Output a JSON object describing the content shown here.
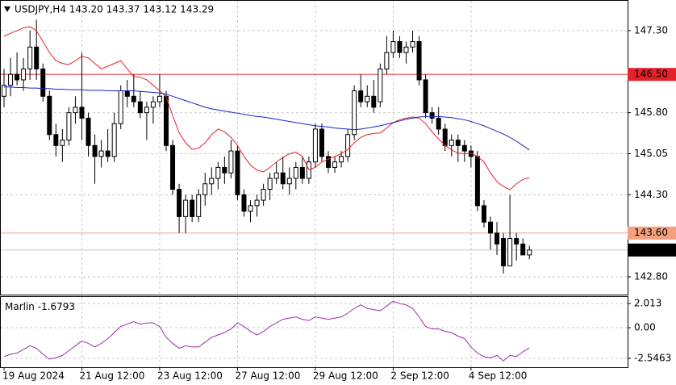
{
  "header": "USDJPY,H4  143.20 143.37 143.12 143.29",
  "chart_data": [
    {
      "type": "candlestick",
      "categories": [
        "19 Aug 2024",
        null,
        null,
        null,
        null,
        null,
        null,
        null,
        null,
        null,
        null,
        null,
        "21 Aug 12:00",
        null,
        null,
        null,
        null,
        null,
        null,
        null,
        null,
        null,
        null,
        null,
        "23 Aug 12:00",
        null,
        null,
        null,
        null,
        null,
        null,
        null,
        null,
        null,
        null,
        null,
        "27 Aug 12:00",
        null,
        null,
        null,
        null,
        null,
        null,
        null,
        null,
        null,
        null,
        null,
        "29 Aug 12:00",
        null,
        null,
        null,
        null,
        null,
        null,
        null,
        null,
        null,
        null,
        null,
        "2 Sep 12:00",
        null,
        null,
        null,
        null,
        null,
        null,
        null,
        null,
        null,
        null,
        null,
        "4 Sep 12:00",
        null,
        null,
        null,
        null,
        null,
        null,
        null,
        null,
        null
      ],
      "open": [
        146.1,
        146.3,
        146.5,
        146.4,
        146.6,
        147.0,
        146.6,
        146.1,
        145.4,
        145.2,
        145.3,
        145.8,
        145.9,
        145.7,
        145.2,
        145.0,
        145.1,
        145.0,
        145.6,
        146.2,
        146.1,
        146.0,
        145.8,
        145.9,
        146.0,
        146.1,
        145.2,
        144.4,
        143.9,
        144.2,
        143.9,
        144.3,
        144.5,
        144.6,
        144.8,
        144.7,
        145.1,
        144.3,
        144.0,
        144.1,
        144.2,
        144.4,
        144.6,
        144.7,
        144.5,
        144.6,
        144.8,
        144.6,
        144.9,
        145.5,
        145.0,
        144.8,
        144.9,
        145.0,
        145.4,
        146.2,
        146.0,
        146.1,
        146.0,
        146.6,
        146.9,
        147.1,
        146.9,
        147.0,
        147.1,
        146.4,
        145.8,
        145.7,
        145.5,
        145.2,
        145.3,
        145.2,
        145.1,
        145.0,
        144.1,
        143.8,
        143.6,
        143.5,
        143.0,
        143.5,
        143.4,
        143.2
      ],
      "high": [
        146.6,
        146.8,
        146.9,
        146.8,
        147.3,
        147.5,
        146.7,
        146.2,
        145.6,
        145.5,
        145.9,
        146.1,
        146.9,
        145.8,
        145.4,
        145.3,
        145.5,
        145.8,
        146.3,
        146.4,
        146.5,
        146.2,
        146.0,
        146.1,
        146.5,
        146.2,
        145.3,
        144.5,
        144.3,
        144.3,
        144.4,
        144.7,
        144.8,
        144.9,
        145.0,
        145.3,
        145.2,
        144.4,
        144.2,
        144.3,
        144.5,
        144.7,
        144.9,
        145.0,
        144.8,
        144.9,
        145.0,
        145.0,
        145.6,
        145.6,
        145.1,
        145.0,
        145.1,
        145.5,
        146.3,
        146.5,
        146.3,
        146.4,
        146.7,
        147.2,
        147.3,
        147.2,
        147.1,
        147.3,
        147.2,
        146.5,
        145.9,
        145.9,
        145.6,
        145.4,
        145.4,
        145.3,
        145.2,
        145.1,
        144.2,
        143.9,
        143.8,
        143.6,
        144.3,
        143.6,
        143.5,
        143.37
      ],
      "low": [
        145.9,
        146.1,
        146.3,
        146.2,
        146.4,
        146.4,
        146.0,
        145.3,
        145.0,
        144.9,
        145.2,
        145.6,
        145.3,
        145.0,
        144.5,
        144.8,
        144.9,
        144.9,
        145.5,
        145.9,
        145.9,
        145.7,
        145.3,
        145.6,
        145.9,
        145.1,
        144.3,
        143.6,
        143.6,
        143.8,
        143.8,
        144.1,
        144.3,
        144.4,
        144.5,
        144.6,
        144.2,
        143.9,
        143.8,
        143.9,
        144.1,
        144.2,
        144.5,
        144.4,
        144.3,
        144.4,
        144.5,
        144.5,
        144.8,
        144.9,
        144.7,
        144.7,
        144.8,
        144.9,
        145.3,
        145.9,
        145.9,
        145.8,
        145.9,
        146.5,
        146.8,
        146.8,
        146.7,
        146.9,
        146.3,
        145.7,
        145.6,
        145.4,
        145.1,
        145.0,
        144.9,
        144.9,
        144.8,
        144.0,
        143.7,
        143.3,
        143.2,
        142.86,
        143.0,
        143.1,
        143.2,
        143.12
      ],
      "close": [
        146.3,
        146.5,
        146.4,
        146.6,
        147.0,
        146.6,
        146.1,
        145.4,
        145.2,
        145.3,
        145.8,
        145.9,
        145.7,
        145.2,
        145.0,
        145.1,
        145.0,
        145.6,
        146.2,
        146.1,
        146.0,
        145.8,
        145.9,
        146.0,
        146.1,
        145.2,
        144.4,
        143.9,
        144.2,
        143.9,
        144.3,
        144.5,
        144.6,
        144.8,
        144.7,
        145.1,
        144.3,
        144.0,
        144.1,
        144.2,
        144.4,
        144.6,
        144.7,
        144.5,
        144.6,
        144.8,
        144.6,
        144.9,
        145.5,
        145.0,
        144.8,
        144.9,
        145.0,
        145.4,
        146.2,
        146.0,
        146.1,
        145.9,
        146.6,
        146.9,
        147.1,
        146.9,
        147.0,
        147.1,
        146.4,
        145.8,
        145.7,
        145.5,
        145.2,
        145.3,
        145.2,
        145.1,
        145.0,
        144.1,
        143.8,
        143.6,
        143.4,
        143.0,
        143.5,
        143.4,
        143.2,
        143.29
      ],
      "lines": [
        {
          "color": "#e8202a",
          "values": [
            147.2,
            147.25,
            147.3,
            147.35,
            147.37,
            147.3,
            147.1,
            146.9,
            146.75,
            146.7,
            146.68,
            146.75,
            146.83,
            146.8,
            146.7,
            146.6,
            146.65,
            146.7,
            146.75,
            146.6,
            146.46,
            146.45,
            146.4,
            146.3,
            146.2,
            146.09,
            145.75,
            145.43,
            145.25,
            145.13,
            145.15,
            145.25,
            145.4,
            145.5,
            145.45,
            145.35,
            145.2,
            145.0,
            144.84,
            144.75,
            144.72,
            144.8,
            144.9,
            144.98,
            145.05,
            145.08,
            145.0,
            144.76,
            144.8,
            144.9,
            144.95,
            145.0,
            145.05,
            145.13,
            145.25,
            145.35,
            145.4,
            145.42,
            145.43,
            145.52,
            145.62,
            145.67,
            145.7,
            145.72,
            145.7,
            145.6,
            145.45,
            145.32,
            145.2,
            145.12,
            145.06,
            145.05,
            145.06,
            145.0,
            144.9,
            144.7,
            144.54,
            144.45,
            144.39,
            144.5,
            144.58,
            144.61
          ]
        },
        {
          "color": "#1a22c8",
          "values": [
            146.27,
            146.27,
            146.26,
            146.26,
            146.25,
            146.25,
            146.24,
            146.24,
            146.23,
            146.23,
            146.22,
            146.22,
            146.22,
            146.21,
            146.21,
            146.21,
            146.2,
            146.2,
            146.2,
            146.2,
            146.2,
            146.19,
            146.18,
            146.17,
            146.16,
            146.14,
            146.1,
            146.06,
            146.02,
            145.98,
            145.94,
            145.9,
            145.87,
            145.85,
            145.83,
            145.81,
            145.79,
            145.77,
            145.75,
            145.73,
            145.72,
            145.7,
            145.68,
            145.66,
            145.64,
            145.62,
            145.6,
            145.58,
            145.56,
            145.55,
            145.54,
            145.52,
            145.51,
            145.5,
            145.49,
            145.5,
            145.52,
            145.54,
            145.56,
            145.59,
            145.62,
            145.65,
            145.68,
            145.7,
            145.72,
            145.73,
            145.73,
            145.73,
            145.72,
            145.71,
            145.69,
            145.67,
            145.64,
            145.6,
            145.56,
            145.51,
            145.46,
            145.41,
            145.35,
            145.28,
            145.2,
            145.12
          ]
        }
      ],
      "levels": [
        {
          "value": 146.5,
          "label": "146.50",
          "color": "#e8202a"
        },
        {
          "value": 143.6,
          "label": "143.60",
          "color": "#f4a07c"
        }
      ],
      "last": {
        "value": 143.29,
        "label": "143.29"
      },
      "ylim": [
        142.475,
        147.86
      ],
      "yticks": [
        {
          "value": 147.3,
          "label": "147.30"
        },
        {
          "value": 145.8,
          "label": "145.80"
        },
        {
          "value": 145.05,
          "label": "145.05"
        },
        {
          "value": 144.3,
          "label": "144.30"
        },
        {
          "value": 142.8,
          "label": "142.80"
        }
      ],
      "grid": true
    },
    {
      "type": "line",
      "name": "Marlin",
      "current": -1.6793,
      "color": "#9b2fa8",
      "values": [
        -2.4,
        -2.2,
        -2.1,
        -1.8,
        -1.5,
        -1.7,
        -2.2,
        -2.6,
        -2.5,
        -2.3,
        -1.9,
        -1.5,
        -1.1,
        -1.3,
        -1.6,
        -1.3,
        -0.9,
        -0.4,
        0.1,
        0.3,
        0.5,
        0.3,
        0.4,
        0.4,
        0.1,
        -0.8,
        -1.3,
        -1.7,
        -1.5,
        -1.6,
        -1.6,
        -1.2,
        -0.8,
        -0.6,
        -0.4,
        -0.1,
        0.4,
        0.1,
        -0.3,
        -0.6,
        -0.3,
        0.1,
        0.4,
        0.7,
        0.8,
        0.9,
        0.7,
        0.6,
        0.9,
        0.8,
        0.7,
        0.8,
        0.9,
        1.2,
        1.6,
        1.9,
        1.6,
        1.5,
        1.4,
        1.8,
        2.2,
        2.0,
        1.9,
        1.6,
        0.9,
        0.1,
        -0.1,
        -0.1,
        -0.3,
        -0.4,
        -0.7,
        -0.9,
        -1.6,
        -2.1,
        -2.4,
        -2.5,
        -2.3,
        -2.75,
        -2.3,
        -2.4,
        -2.0,
        -1.6793
      ],
      "ylim": [
        -3.28,
        2.616
      ],
      "yticks": [
        2.013,
        {
          "value": 0,
          "label": "0.00"
        },
        -2.5463
      ],
      "grid": true
    }
  ]
}
